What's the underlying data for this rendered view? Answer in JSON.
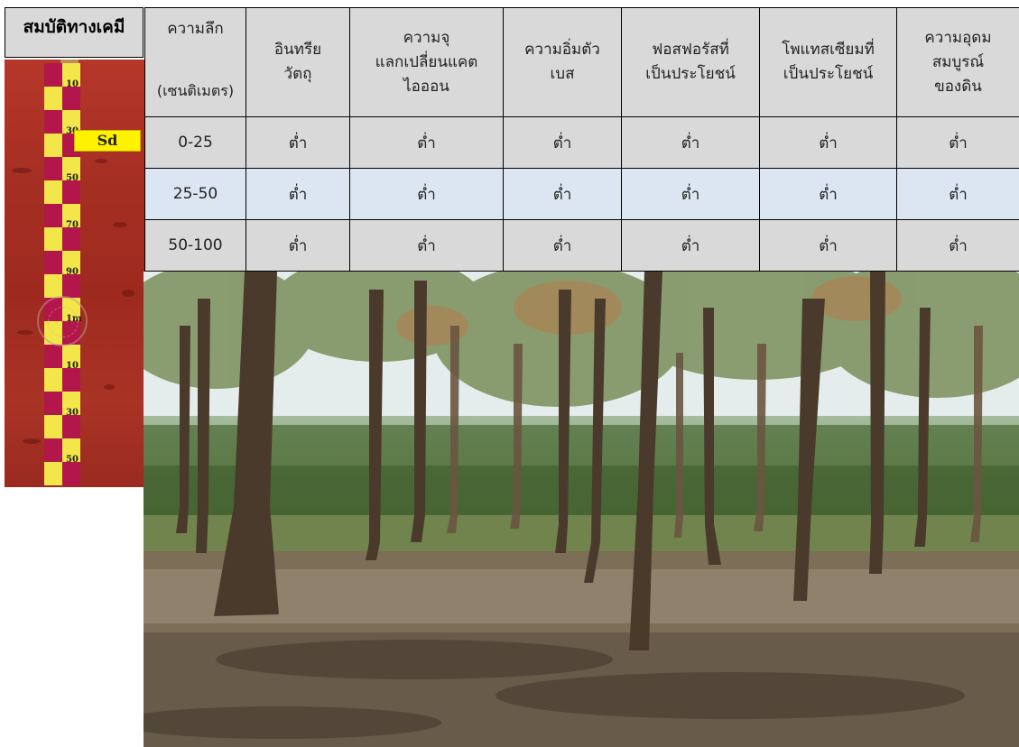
{
  "title": "สมบัติทางเคมี",
  "soil_profile": {
    "label": "Sd",
    "tape_marks": [
      "10",
      "30",
      "50",
      "70",
      "90",
      "1m",
      "10",
      "30",
      "50"
    ]
  },
  "table": {
    "headers": {
      "depth_line1": "ความลึก",
      "depth_line2": "(เซนติเมตร)",
      "organic": "อินทรีย\nวัตถุ",
      "cec": "ความจุ\nแลกเปลี่ยนแคต\nไอออน",
      "base_sat": "ความอิ่มตัว\nเบส",
      "phosphorus": "ฟอสฟอรัสที่\nเป็นประโยชน์",
      "potassium": "โพแทสเซียมที่\nเป็นประโยชน์",
      "fertility": "ความอุดม\nสมบูรณ์\nของดิน"
    },
    "rows": [
      {
        "depth": "0-25",
        "organic": "ต่ำ",
        "cec": "ต่ำ",
        "base_sat": "ต่ำ",
        "phosphorus": "ต่ำ",
        "potassium": "ต่ำ",
        "fertility": "ต่ำ"
      },
      {
        "depth": "25-50",
        "organic": "ต่ำ",
        "cec": "ต่ำ",
        "base_sat": "ต่ำ",
        "phosphorus": "ต่ำ",
        "potassium": "ต่ำ",
        "fertility": "ต่ำ"
      },
      {
        "depth": "50-100",
        "organic": "ต่ำ",
        "cec": "ต่ำ",
        "base_sat": "ต่ำ",
        "phosphorus": "ต่ำ",
        "potassium": "ต่ำ",
        "fertility": "ต่ำ"
      }
    ],
    "colors": {
      "header_bg": "#d9d9d9",
      "row_gray": "#d9d9d9",
      "row_blue": "#dce6f2"
    }
  }
}
